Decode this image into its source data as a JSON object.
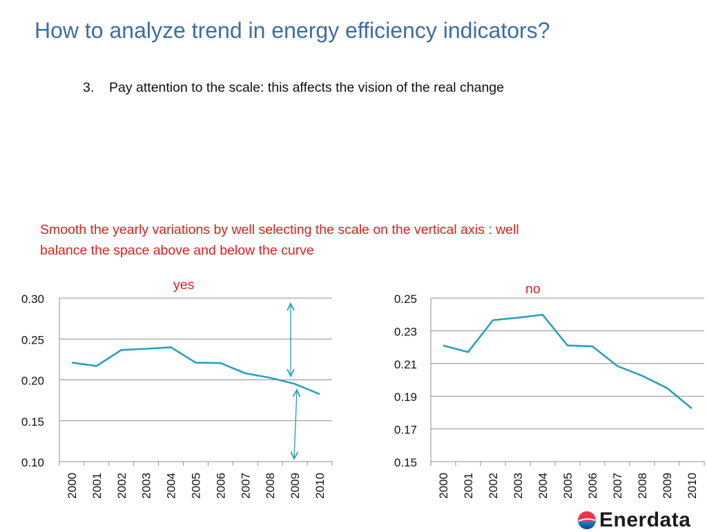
{
  "slide": {
    "title": "How to analyze trend in energy efficiency indicators?",
    "bullet_number": "3.",
    "bullet_text": "Pay attention to the scale: this affects the vision of the real change",
    "note_line1": "Smooth the  yearly variations by well selecting  the scale on the vertical axis : well",
    "note_line2": "balance the space above and below the curve",
    "logo_text": "Enerdata"
  },
  "colors": {
    "title": "#3d6ca7",
    "note": "#e31b1b",
    "line": "#2a9fba",
    "arrow": "#2a9fba",
    "grid": "#8c8c8c"
  },
  "chart_data": [
    {
      "type": "line",
      "label": "yes",
      "categories": [
        "2000",
        "2001",
        "2002",
        "2003",
        "2004",
        "2005",
        "2006",
        "2007",
        "2008",
        "2009",
        "2010"
      ],
      "values": [
        0.221,
        0.217,
        0.2365,
        0.238,
        0.2398,
        0.221,
        0.2205,
        0.208,
        0.2025,
        0.195,
        0.1825
      ],
      "ylim": [
        0.1,
        0.3
      ],
      "yticks": [
        "0.10",
        "0.15",
        "0.20",
        "0.25",
        "0.30"
      ],
      "grid": true,
      "annotations": "two double-headed arrows marking space above and below the curve"
    },
    {
      "type": "line",
      "label": "no",
      "categories": [
        "2000",
        "2001",
        "2002",
        "2003",
        "2004",
        "2005",
        "2006",
        "2007",
        "2008",
        "2009",
        "2010"
      ],
      "values": [
        0.221,
        0.217,
        0.2365,
        0.238,
        0.2398,
        0.221,
        0.2205,
        0.2085,
        0.2025,
        0.195,
        0.1825
      ],
      "ylim": [
        0.15,
        0.25
      ],
      "yticks": [
        "0.15",
        "0.17",
        "0.19",
        "0.21",
        "0.23",
        "0.25"
      ],
      "grid": true
    }
  ]
}
